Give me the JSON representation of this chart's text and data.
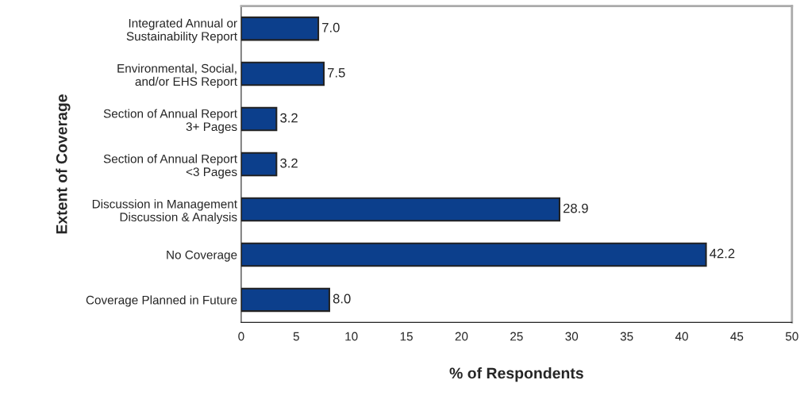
{
  "chart_data": {
    "type": "bar",
    "orientation": "horizontal",
    "xlabel": "% of Respondents",
    "ylabel": "Extent of Coverage",
    "categories": [
      "Integrated Annual or\nSustainability Report",
      "Environmental, Social,\nand/or EHS Report",
      "Section of Annual Report\n3+ Pages",
      "Section of Annual Report\n<3 Pages",
      "Discussion in Management\nDiscussion & Analysis",
      "No Coverage",
      "Coverage Planned in Future"
    ],
    "values": [
      7.0,
      7.5,
      3.2,
      3.2,
      28.9,
      42.2,
      8.0
    ],
    "value_labels": [
      "7.0",
      "7.5",
      "3.2",
      "3.2",
      "28.9",
      "42.2",
      "8.0"
    ],
    "color": "#0c3f8c",
    "xlim": [
      0,
      50
    ],
    "xticks": [
      0,
      5,
      10,
      15,
      20,
      25,
      30,
      35,
      40,
      45,
      50
    ],
    "grid": false,
    "legend": false
  }
}
